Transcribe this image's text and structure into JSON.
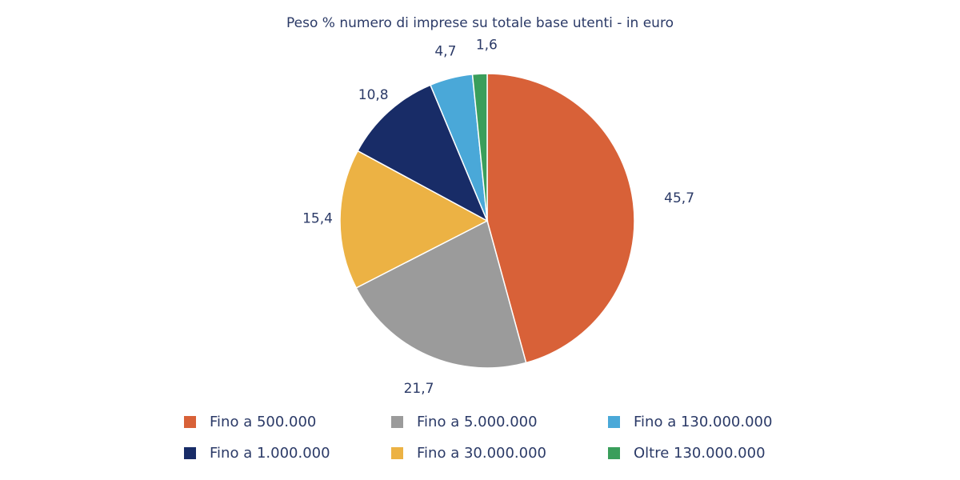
{
  "chart_data": {
    "type": "pie",
    "title": "Peso % numero di imprese su totale base utenti - in euro",
    "slices": [
      {
        "label": "Fino a 500.000",
        "value": 45.7,
        "display": "45,7",
        "color": "#d86138"
      },
      {
        "label": "Fino a 5.000.000",
        "value": 21.7,
        "display": "21,7",
        "color": "#9b9b9b"
      },
      {
        "label": "Fino a 30.000.000",
        "value": 15.4,
        "display": "15,4",
        "color": "#ecb244"
      },
      {
        "label": "Fino a 1.000.000",
        "value": 10.8,
        "display": "10,8",
        "color": "#182c67"
      },
      {
        "label": "Fino a 130.000.000",
        "value": 4.7,
        "display": "4,7",
        "color": "#4aa8d8"
      },
      {
        "label": "Oltre 130.000.000",
        "value": 1.6,
        "display": "1,6",
        "color": "#3a9e5b"
      }
    ],
    "legend_placement": "bottom",
    "legend_order": [
      "Fino a 500.000",
      "Fino a 5.000.000",
      "Fino a 130.000.000",
      "Fino a 1.000.000",
      "Fino a 30.000.000",
      "Oltre 130.000.000"
    ]
  }
}
